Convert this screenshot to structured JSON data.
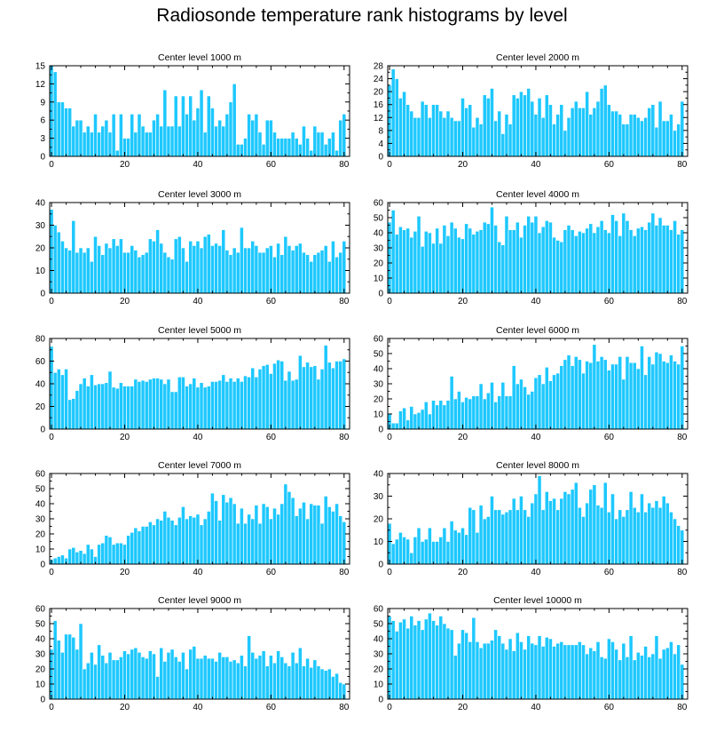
{
  "title": "Radiosonde temperature rank histograms by level",
  "colors": {
    "bar": "#1EC8FF",
    "bar_edge": "#FFFFFF",
    "axis": "#000000"
  },
  "chart_data": [
    {
      "type": "bar",
      "title": "Center level 1000 m",
      "xlim": [
        -0.5,
        81.5
      ],
      "ylim": [
        0,
        15
      ],
      "xticks": [
        0,
        20,
        40,
        60,
        80
      ],
      "yticks": [
        0,
        3,
        6,
        9,
        12,
        15
      ],
      "values": [
        15,
        14,
        9,
        9,
        8,
        8,
        5,
        6,
        6,
        4,
        5,
        4,
        7,
        4,
        5,
        6,
        4,
        7,
        1,
        7,
        3,
        3,
        7,
        4,
        7,
        5,
        4,
        4,
        6,
        7,
        5,
        11,
        5,
        5,
        10,
        5,
        10,
        7,
        10,
        6,
        8,
        11,
        4,
        10,
        8,
        5,
        6,
        5,
        7,
        9,
        12,
        2,
        2,
        3,
        7,
        6,
        7,
        4,
        2,
        6,
        6,
        4,
        3,
        3,
        3,
        3,
        4,
        3,
        2,
        5,
        3,
        1,
        5,
        4,
        4,
        2,
        3,
        4,
        1,
        6,
        7
      ]
    },
    {
      "type": "bar",
      "title": "Center level 2000 m",
      "xlim": [
        -0.5,
        81.5
      ],
      "ylim": [
        0,
        28
      ],
      "xticks": [
        0,
        20,
        40,
        60,
        80
      ],
      "yticks": [
        0,
        4,
        8,
        12,
        16,
        20,
        24,
        28
      ],
      "values": [
        22,
        27,
        24,
        18,
        20,
        16,
        14,
        12,
        12,
        17,
        16,
        12,
        16,
        16,
        14,
        12,
        14,
        12,
        11,
        11,
        18,
        15,
        16,
        9,
        12,
        10,
        19,
        18,
        21,
        11,
        14,
        7,
        13,
        10,
        19,
        18,
        20,
        19,
        21,
        17,
        13,
        18,
        12,
        19,
        16,
        10,
        13,
        16,
        8,
        12,
        15,
        17,
        15,
        15,
        20,
        13,
        15,
        17,
        21,
        22,
        16,
        14,
        14,
        13,
        10,
        10,
        13,
        13,
        12,
        11,
        12,
        15,
        16,
        9,
        17,
        11,
        11,
        13,
        8,
        10,
        17
      ]
    },
    {
      "type": "bar",
      "title": "Center level 3000 m",
      "xlim": [
        -0.5,
        81.5
      ],
      "ylim": [
        0,
        40
      ],
      "xticks": [
        0,
        20,
        40,
        60,
        80
      ],
      "yticks": [
        0,
        10,
        20,
        30,
        40
      ],
      "values": [
        37,
        30,
        27,
        23,
        20,
        19,
        32,
        18,
        20,
        18,
        20,
        14,
        25,
        21,
        17,
        22,
        20,
        24,
        21,
        24,
        18,
        18,
        21,
        19,
        16,
        17,
        18,
        24,
        23,
        28,
        22,
        18,
        16,
        15,
        24,
        25,
        20,
        14,
        23,
        21,
        23,
        20,
        25,
        26,
        21,
        22,
        21,
        28,
        19,
        17,
        20,
        18,
        29,
        20,
        20,
        23,
        21,
        18,
        18,
        20,
        21,
        16,
        22,
        17,
        25,
        21,
        19,
        21,
        22,
        18,
        17,
        14,
        17,
        18,
        19,
        21,
        14,
        23,
        16,
        18,
        23
      ]
    },
    {
      "type": "bar",
      "title": "Center level 4000 m",
      "xlim": [
        -0.5,
        81.5
      ],
      "ylim": [
        0,
        60
      ],
      "xticks": [
        0,
        20,
        40,
        60,
        80
      ],
      "yticks": [
        0,
        10,
        20,
        30,
        40,
        50,
        60
      ],
      "values": [
        47,
        55,
        39,
        44,
        42,
        43,
        37,
        41,
        51,
        31,
        41,
        40,
        33,
        43,
        33,
        45,
        38,
        47,
        43,
        37,
        36,
        46,
        43,
        39,
        41,
        42,
        47,
        46,
        57,
        45,
        34,
        32,
        51,
        42,
        42,
        47,
        37,
        45,
        51,
        47,
        51,
        40,
        44,
        48,
        47,
        37,
        35,
        34,
        42,
        45,
        42,
        38,
        41,
        40,
        43,
        46,
        40,
        44,
        48,
        42,
        40,
        52,
        48,
        38,
        53,
        48,
        42,
        38,
        43,
        44,
        42,
        47,
        53,
        45,
        50,
        45,
        45,
        42,
        48,
        39,
        42
      ]
    },
    {
      "type": "bar",
      "title": "Center level 5000 m",
      "xlim": [
        -0.5,
        81.5
      ],
      "ylim": [
        0,
        80
      ],
      "xticks": [
        0,
        20,
        40,
        60,
        80
      ],
      "yticks": [
        0,
        20,
        40,
        60,
        80
      ],
      "values": [
        73,
        50,
        53,
        48,
        53,
        26,
        27,
        34,
        40,
        45,
        38,
        48,
        39,
        40,
        40,
        41,
        51,
        37,
        36,
        41,
        38,
        38,
        38,
        44,
        42,
        43,
        42,
        44,
        45,
        45,
        44,
        40,
        44,
        33,
        33,
        46,
        46,
        38,
        40,
        45,
        37,
        41,
        37,
        38,
        42,
        42,
        43,
        48,
        42,
        45,
        42,
        45,
        42,
        47,
        46,
        54,
        46,
        53,
        56,
        57,
        49,
        58,
        61,
        60,
        43,
        51,
        43,
        44,
        65,
        55,
        59,
        55,
        56,
        44,
        53,
        74,
        59,
        54,
        60,
        60,
        62
      ]
    },
    {
      "type": "bar",
      "title": "Center level 6000 m",
      "xlim": [
        -0.5,
        81.5
      ],
      "ylim": [
        0,
        60
      ],
      "xticks": [
        0,
        20,
        40,
        60,
        80
      ],
      "yticks": [
        0,
        10,
        20,
        30,
        40,
        50,
        60
      ],
      "values": [
        10,
        4,
        4,
        12,
        14,
        6,
        15,
        10,
        11,
        13,
        18,
        10,
        19,
        16,
        19,
        16,
        19,
        35,
        20,
        25,
        18,
        21,
        20,
        22,
        22,
        30,
        20,
        24,
        31,
        18,
        22,
        31,
        22,
        22,
        42,
        30,
        33,
        28,
        23,
        25,
        34,
        36,
        30,
        41,
        32,
        36,
        37,
        42,
        46,
        49,
        42,
        48,
        46,
        37,
        45,
        44,
        56,
        45,
        48,
        46,
        39,
        43,
        43,
        48,
        33,
        48,
        44,
        44,
        40,
        55,
        36,
        48,
        43,
        51,
        50,
        45,
        44,
        49,
        45,
        43,
        55
      ]
    },
    {
      "type": "bar",
      "title": "Center level 7000 m",
      "xlim": [
        -0.5,
        81.5
      ],
      "ylim": [
        0,
        60
      ],
      "xticks": [
        0,
        20,
        40,
        60,
        80
      ],
      "yticks": [
        0,
        10,
        20,
        30,
        40,
        50,
        60
      ],
      "values": [
        3,
        4,
        5,
        6,
        4,
        10,
        11,
        8,
        9,
        7,
        13,
        10,
        5,
        13,
        14,
        19,
        18,
        13,
        14,
        14,
        13,
        19,
        21,
        24,
        22,
        25,
        25,
        28,
        26,
        30,
        29,
        35,
        31,
        29,
        26,
        31,
        38,
        30,
        32,
        31,
        33,
        26,
        30,
        35,
        47,
        42,
        29,
        46,
        41,
        44,
        40,
        27,
        37,
        27,
        33,
        30,
        39,
        27,
        40,
        38,
        30,
        37,
        33,
        40,
        53,
        48,
        44,
        32,
        37,
        41,
        30,
        40,
        39,
        39,
        27,
        45,
        38,
        35,
        40,
        32,
        28
      ]
    },
    {
      "type": "bar",
      "title": "Center level 8000 m",
      "xlim": [
        -0.5,
        81.5
      ],
      "ylim": [
        0,
        40
      ],
      "xticks": [
        0,
        20,
        40,
        60,
        80
      ],
      "yticks": [
        0,
        10,
        20,
        30,
        40
      ],
      "values": [
        18,
        9,
        11,
        14,
        12,
        11,
        5,
        12,
        16,
        10,
        11,
        16,
        10,
        10,
        12,
        16,
        10,
        19,
        15,
        14,
        16,
        13,
        25,
        24,
        14,
        26,
        20,
        21,
        30,
        24,
        24,
        22,
        23,
        24,
        29,
        24,
        30,
        24,
        21,
        27,
        31,
        39,
        24,
        32,
        28,
        29,
        24,
        29,
        32,
        31,
        33,
        36,
        25,
        21,
        27,
        33,
        35,
        26,
        25,
        36,
        23,
        31,
        20,
        24,
        21,
        24,
        32,
        25,
        23,
        31,
        23,
        27,
        25,
        28,
        25,
        30,
        27,
        23,
        20,
        17,
        15
      ]
    },
    {
      "type": "bar",
      "title": "Center level 9000 m",
      "xlim": [
        -0.5,
        81.5
      ],
      "ylim": [
        0,
        60
      ],
      "xticks": [
        0,
        20,
        40,
        60,
        80
      ],
      "yticks": [
        0,
        10,
        20,
        30,
        40,
        50,
        60
      ],
      "values": [
        33,
        52,
        39,
        31,
        43,
        43,
        41,
        33,
        50,
        20,
        24,
        31,
        23,
        36,
        29,
        24,
        31,
        26,
        26,
        28,
        32,
        30,
        33,
        34,
        31,
        28,
        27,
        32,
        30,
        15,
        34,
        25,
        31,
        33,
        28,
        25,
        31,
        20,
        33,
        35,
        27,
        27,
        29,
        27,
        27,
        25,
        31,
        28,
        28,
        25,
        26,
        24,
        29,
        22,
        42,
        31,
        27,
        29,
        32,
        22,
        29,
        24,
        32,
        28,
        24,
        22,
        31,
        24,
        34,
        22,
        27,
        21,
        26,
        22,
        20,
        19,
        20,
        15,
        17,
        11,
        10
      ]
    },
    {
      "type": "bar",
      "title": "Center level 10000 m",
      "xlim": [
        -0.5,
        81.5
      ],
      "ylim": [
        0,
        60
      ],
      "xticks": [
        0,
        20,
        40,
        60,
        80
      ],
      "yticks": [
        0,
        10,
        20,
        30,
        40,
        50,
        60
      ],
      "values": [
        55,
        52,
        45,
        51,
        53,
        47,
        55,
        49,
        52,
        46,
        53,
        57,
        52,
        49,
        55,
        50,
        47,
        46,
        29,
        37,
        46,
        44,
        38,
        54,
        38,
        34,
        37,
        37,
        39,
        46,
        42,
        37,
        33,
        40,
        32,
        44,
        38,
        33,
        42,
        37,
        36,
        42,
        35,
        41,
        40,
        35,
        37,
        38,
        36,
        36,
        36,
        36,
        38,
        36,
        30,
        34,
        32,
        38,
        28,
        27,
        40,
        38,
        33,
        26,
        37,
        28,
        42,
        26,
        31,
        29,
        35,
        28,
        30,
        42,
        27,
        33,
        34,
        38,
        30,
        36,
        23
      ]
    }
  ]
}
